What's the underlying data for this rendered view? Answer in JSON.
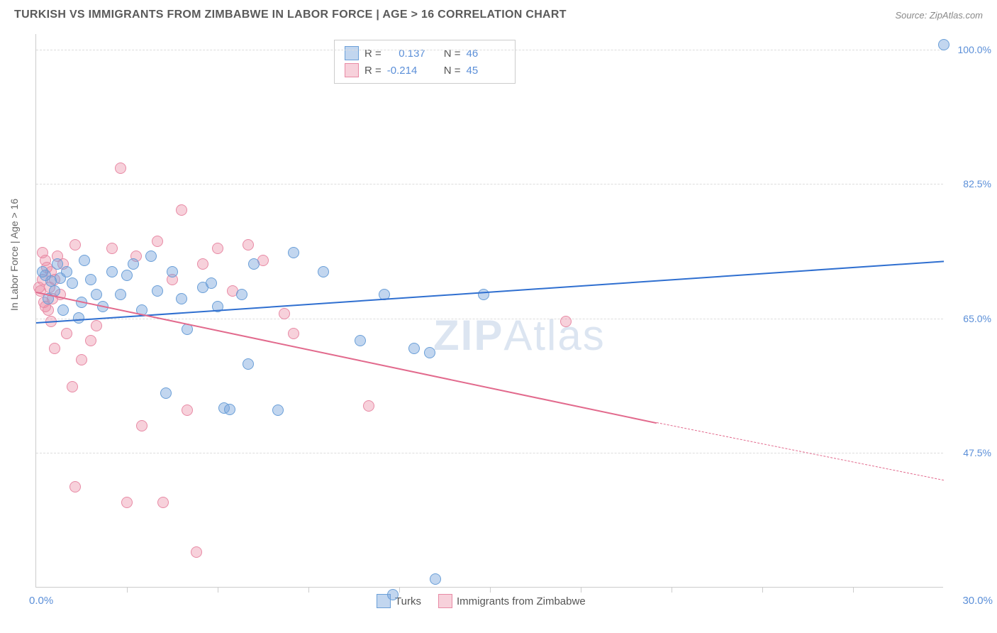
{
  "title": "TURKISH VS IMMIGRANTS FROM ZIMBABWE IN LABOR FORCE | AGE > 16 CORRELATION CHART",
  "source": "Source: ZipAtlas.com",
  "ylabel": "In Labor Force | Age > 16",
  "watermark_bold": "ZIP",
  "watermark_rest": "Atlas",
  "chart": {
    "type": "scatter",
    "background_color": "#ffffff",
    "grid_color": "#dddddd",
    "axis_color": "#cccccc",
    "xlim": [
      0,
      30
    ],
    "ylim": [
      30,
      102
    ],
    "x_tick_positions_pct": [
      10,
      20,
      30,
      40,
      50,
      60,
      70,
      80,
      90
    ],
    "x_left_label": "0.0%",
    "x_right_label": "30.0%",
    "y_gridlines": [
      {
        "value": 100.0,
        "label": "100.0%"
      },
      {
        "value": 82.5,
        "label": "82.5%"
      },
      {
        "value": 65.0,
        "label": "65.0%"
      },
      {
        "value": 47.5,
        "label": "47.5%"
      }
    ],
    "series": {
      "turks": {
        "label": "Turks",
        "fill": "rgba(120,165,220,0.45)",
        "stroke": "#6a9fd8",
        "line_color": "#2f6fd0",
        "r_value": "0.137",
        "n_value": "46",
        "trend": {
          "x1": 0,
          "y1": 64.5,
          "x2": 30,
          "y2": 72.5
        },
        "points": [
          [
            30.0,
            100.5
          ],
          [
            12.5,
            61.0
          ],
          [
            13.0,
            60.5
          ],
          [
            13.2,
            31.0
          ],
          [
            11.8,
            29.0
          ],
          [
            8.0,
            53.0
          ],
          [
            6.2,
            53.3
          ],
          [
            6.4,
            53.1
          ],
          [
            7.0,
            59.0
          ],
          [
            4.3,
            55.2
          ],
          [
            5.0,
            63.5
          ],
          [
            10.7,
            62.0
          ],
          [
            11.5,
            68.0
          ],
          [
            14.8,
            68.0
          ],
          [
            9.5,
            71.0
          ],
          [
            8.5,
            73.5
          ],
          [
            7.2,
            72.0
          ],
          [
            5.5,
            69.0
          ],
          [
            4.0,
            68.5
          ],
          [
            3.0,
            70.5
          ],
          [
            2.5,
            71.0
          ],
          [
            1.8,
            70.0
          ],
          [
            3.2,
            72.0
          ],
          [
            4.5,
            71.0
          ],
          [
            5.8,
            69.5
          ],
          [
            2.0,
            68.0
          ],
          [
            1.2,
            69.5
          ],
          [
            0.8,
            70.2
          ],
          [
            1.0,
            71.0
          ],
          [
            0.5,
            69.8
          ],
          [
            1.5,
            67.0
          ],
          [
            0.3,
            70.5
          ],
          [
            2.2,
            66.5
          ],
          [
            0.6,
            68.5
          ],
          [
            0.4,
            67.5
          ],
          [
            1.4,
            65.0
          ],
          [
            0.9,
            66.0
          ],
          [
            2.8,
            68.0
          ],
          [
            3.5,
            66.0
          ],
          [
            4.8,
            67.5
          ],
          [
            6.0,
            66.5
          ],
          [
            6.8,
            68.0
          ],
          [
            1.6,
            72.5
          ],
          [
            0.7,
            72.0
          ],
          [
            0.2,
            71.0
          ],
          [
            3.8,
            73.0
          ]
        ]
      },
      "zimbabwe": {
        "label": "Immigigrants from Zimbabwe",
        "label_short": "Immigrants from Zimbabwe",
        "fill": "rgba(235,140,165,0.4)",
        "stroke": "#e88aa5",
        "line_color": "#e26a8d",
        "r_value": "-0.214",
        "n_value": "45",
        "trend_solid": {
          "x1": 0,
          "y1": 68.5,
          "x2": 20.5,
          "y2": 51.5
        },
        "trend_dashed": {
          "x1": 20.5,
          "y1": 51.5,
          "x2": 30,
          "y2": 44.0
        },
        "points": [
          [
            17.5,
            64.5
          ],
          [
            11.0,
            53.5
          ],
          [
            5.3,
            34.5
          ],
          [
            5.0,
            53.0
          ],
          [
            3.5,
            51.0
          ],
          [
            1.3,
            43.0
          ],
          [
            3.0,
            41.0
          ],
          [
            4.2,
            41.0
          ],
          [
            2.8,
            84.5
          ],
          [
            0.3,
            72.5
          ],
          [
            0.5,
            71.0
          ],
          [
            0.2,
            70.0
          ],
          [
            0.8,
            68.0
          ],
          [
            0.4,
            66.0
          ],
          [
            1.0,
            63.0
          ],
          [
            1.5,
            59.5
          ],
          [
            1.8,
            62.0
          ],
          [
            2.0,
            64.0
          ],
          [
            0.6,
            61.0
          ],
          [
            1.2,
            56.0
          ],
          [
            4.8,
            79.0
          ],
          [
            6.0,
            74.0
          ],
          [
            7.0,
            74.5
          ],
          [
            7.5,
            72.5
          ],
          [
            5.5,
            72.0
          ],
          [
            4.5,
            70.0
          ],
          [
            4.0,
            75.0
          ],
          [
            3.3,
            73.0
          ],
          [
            2.5,
            74.0
          ],
          [
            6.5,
            68.5
          ],
          [
            8.2,
            65.5
          ],
          [
            8.5,
            63.0
          ],
          [
            0.2,
            73.5
          ],
          [
            0.1,
            69.0
          ],
          [
            0.3,
            66.5
          ],
          [
            0.5,
            64.5
          ],
          [
            0.15,
            68.5
          ],
          [
            0.6,
            70.0
          ],
          [
            0.35,
            71.5
          ],
          [
            0.45,
            69.0
          ],
          [
            0.25,
            67.0
          ],
          [
            0.9,
            72.0
          ],
          [
            1.3,
            74.5
          ],
          [
            0.7,
            73.0
          ],
          [
            0.55,
            67.5
          ]
        ]
      }
    }
  },
  "legend_r_label": "R =",
  "legend_n_label": "N ="
}
